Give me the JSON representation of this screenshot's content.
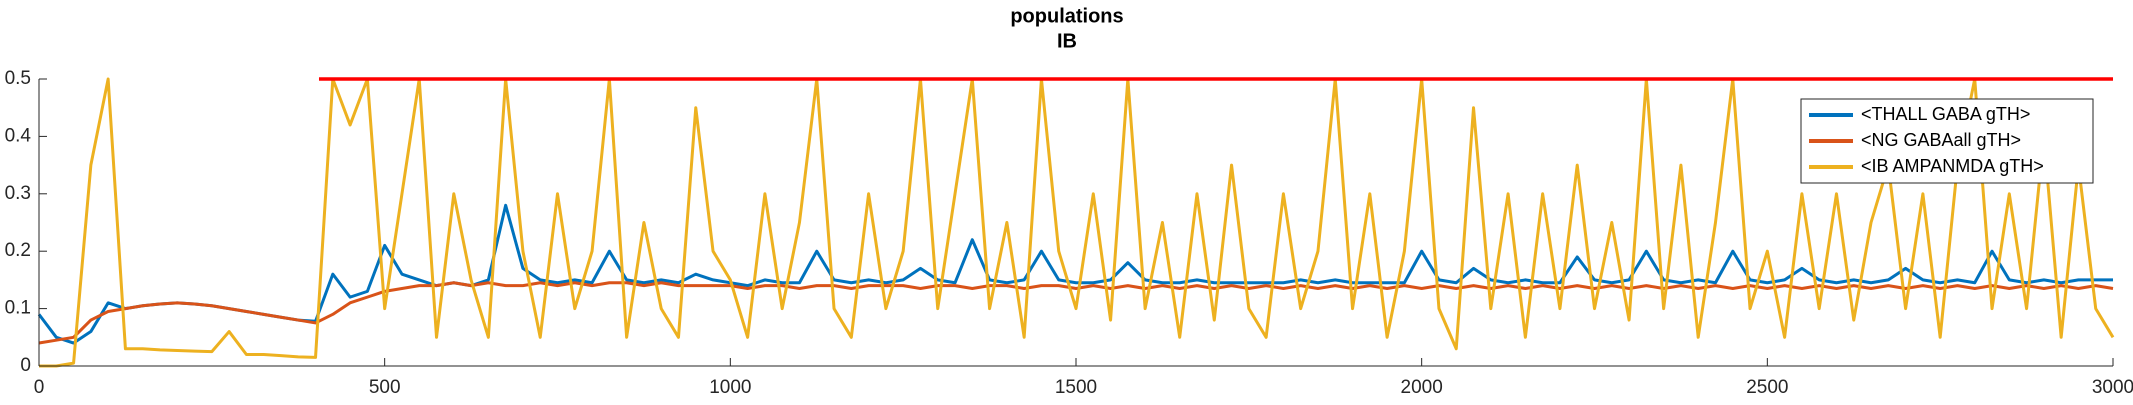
{
  "chart_data": {
    "type": "line",
    "title": "populations",
    "subtitle": "IB",
    "x": [
      0,
      25,
      50,
      75,
      100,
      125,
      150,
      175,
      200,
      225,
      250,
      275,
      300,
      325,
      350,
      375,
      400,
      425,
      450,
      475,
      500,
      525,
      550,
      575,
      600,
      625,
      650,
      675,
      700,
      725,
      750,
      775,
      800,
      825,
      850,
      875,
      900,
      925,
      950,
      975,
      1000,
      1025,
      1050,
      1075,
      1100,
      1125,
      1150,
      1175,
      1200,
      1225,
      1250,
      1275,
      1300,
      1325,
      1350,
      1375,
      1400,
      1425,
      1450,
      1475,
      1500,
      1525,
      1550,
      1575,
      1600,
      1625,
      1650,
      1675,
      1700,
      1725,
      1750,
      1775,
      1800,
      1825,
      1850,
      1875,
      1900,
      1925,
      1950,
      1975,
      2000,
      2025,
      2050,
      2075,
      2100,
      2125,
      2150,
      2175,
      2200,
      2225,
      2250,
      2275,
      2300,
      2325,
      2350,
      2375,
      2400,
      2425,
      2450,
      2475,
      2500,
      2525,
      2550,
      2575,
      2600,
      2625,
      2650,
      2675,
      2700,
      2725,
      2750,
      2775,
      2800,
      2825,
      2850,
      2875,
      2900,
      2925,
      2950,
      2975,
      3000
    ],
    "series": [
      {
        "name": "<THALL GABA gTH>",
        "color": "#0072bd",
        "values": [
          0.09,
          0.05,
          0.04,
          0.06,
          0.11,
          0.1,
          0.105,
          0.108,
          0.11,
          0.108,
          0.105,
          0.1,
          0.095,
          0.09,
          0.085,
          0.08,
          0.078,
          0.16,
          0.12,
          0.13,
          0.21,
          0.16,
          0.15,
          0.14,
          0.145,
          0.14,
          0.15,
          0.28,
          0.17,
          0.15,
          0.145,
          0.15,
          0.145,
          0.2,
          0.15,
          0.145,
          0.15,
          0.145,
          0.16,
          0.15,
          0.145,
          0.14,
          0.15,
          0.145,
          0.145,
          0.2,
          0.15,
          0.145,
          0.15,
          0.145,
          0.15,
          0.17,
          0.15,
          0.145,
          0.22,
          0.15,
          0.145,
          0.15,
          0.2,
          0.15,
          0.145,
          0.145,
          0.15,
          0.18,
          0.15,
          0.145,
          0.145,
          0.15,
          0.145,
          0.145,
          0.145,
          0.145,
          0.145,
          0.15,
          0.145,
          0.15,
          0.145,
          0.145,
          0.145,
          0.145,
          0.2,
          0.15,
          0.145,
          0.17,
          0.15,
          0.145,
          0.15,
          0.145,
          0.145,
          0.19,
          0.15,
          0.145,
          0.15,
          0.2,
          0.15,
          0.145,
          0.15,
          0.145,
          0.2,
          0.15,
          0.145,
          0.15,
          0.17,
          0.15,
          0.145,
          0.15,
          0.145,
          0.15,
          0.17,
          0.15,
          0.145,
          0.15,
          0.145,
          0.2,
          0.15,
          0.145,
          0.15,
          0.145,
          0.15,
          0.15,
          0.15
        ]
      },
      {
        "name": "<NG GABAall gTH>",
        "color": "#d95319",
        "values": [
          0.04,
          0.045,
          0.05,
          0.08,
          0.095,
          0.1,
          0.105,
          0.108,
          0.11,
          0.108,
          0.105,
          0.1,
          0.095,
          0.09,
          0.085,
          0.08,
          0.075,
          0.09,
          0.11,
          0.12,
          0.13,
          0.135,
          0.14,
          0.14,
          0.145,
          0.14,
          0.145,
          0.14,
          0.14,
          0.145,
          0.14,
          0.145,
          0.14,
          0.145,
          0.145,
          0.14,
          0.145,
          0.14,
          0.14,
          0.14,
          0.14,
          0.135,
          0.14,
          0.14,
          0.135,
          0.14,
          0.14,
          0.135,
          0.14,
          0.14,
          0.14,
          0.135,
          0.14,
          0.14,
          0.135,
          0.14,
          0.14,
          0.135,
          0.14,
          0.14,
          0.135,
          0.14,
          0.135,
          0.14,
          0.135,
          0.14,
          0.135,
          0.14,
          0.135,
          0.14,
          0.135,
          0.14,
          0.135,
          0.14,
          0.135,
          0.14,
          0.135,
          0.14,
          0.135,
          0.14,
          0.135,
          0.14,
          0.135,
          0.14,
          0.135,
          0.14,
          0.135,
          0.14,
          0.135,
          0.14,
          0.135,
          0.14,
          0.135,
          0.14,
          0.135,
          0.14,
          0.135,
          0.14,
          0.135,
          0.14,
          0.135,
          0.14,
          0.135,
          0.14,
          0.135,
          0.14,
          0.135,
          0.14,
          0.135,
          0.14,
          0.135,
          0.14,
          0.135,
          0.14,
          0.135,
          0.14,
          0.135,
          0.14,
          0.135,
          0.14,
          0.135
        ]
      },
      {
        "name": "<IB AMPANMDA gTH>",
        "color": "#edb120",
        "values": [
          0,
          0,
          0.005,
          0.35,
          0.5,
          0.03,
          0.03,
          0.028,
          0.027,
          0.026,
          0.025,
          0.06,
          0.02,
          0.02,
          0.018,
          0.016,
          0.015,
          0.5,
          0.42,
          0.5,
          0.1,
          0.3,
          0.5,
          0.05,
          0.3,
          0.15,
          0.05,
          0.5,
          0.2,
          0.05,
          0.3,
          0.1,
          0.2,
          0.5,
          0.05,
          0.25,
          0.1,
          0.05,
          0.45,
          0.2,
          0.15,
          0.05,
          0.3,
          0.1,
          0.25,
          0.5,
          0.1,
          0.05,
          0.3,
          0.1,
          0.2,
          0.5,
          0.1,
          0.3,
          0.5,
          0.1,
          0.25,
          0.05,
          0.5,
          0.2,
          0.1,
          0.3,
          0.08,
          0.5,
          0.1,
          0.25,
          0.05,
          0.3,
          0.08,
          0.35,
          0.1,
          0.05,
          0.3,
          0.1,
          0.2,
          0.5,
          0.1,
          0.3,
          0.05,
          0.2,
          0.5,
          0.1,
          0.03,
          0.45,
          0.1,
          0.3,
          0.05,
          0.3,
          0.1,
          0.35,
          0.1,
          0.25,
          0.08,
          0.5,
          0.1,
          0.35,
          0.05,
          0.25,
          0.5,
          0.1,
          0.2,
          0.05,
          0.3,
          0.1,
          0.3,
          0.08,
          0.25,
          0.35,
          0.1,
          0.3,
          0.05,
          0.35,
          0.5,
          0.1,
          0.3,
          0.1,
          0.4,
          0.05,
          0.35,
          0.1,
          0.05
        ]
      }
    ],
    "reference_line": {
      "y": 0.5,
      "x": [
        405,
        3000
      ],
      "color": "#ff0000"
    },
    "xlim": [
      0,
      3000
    ],
    "xticks": [
      0,
      500,
      1000,
      1500,
      2000,
      2500,
      3000
    ],
    "ylim": [
      0,
      0.5
    ],
    "yticks": [
      0,
      0.1,
      0.2,
      0.3,
      0.4,
      0.5
    ],
    "legend": "northeast"
  }
}
